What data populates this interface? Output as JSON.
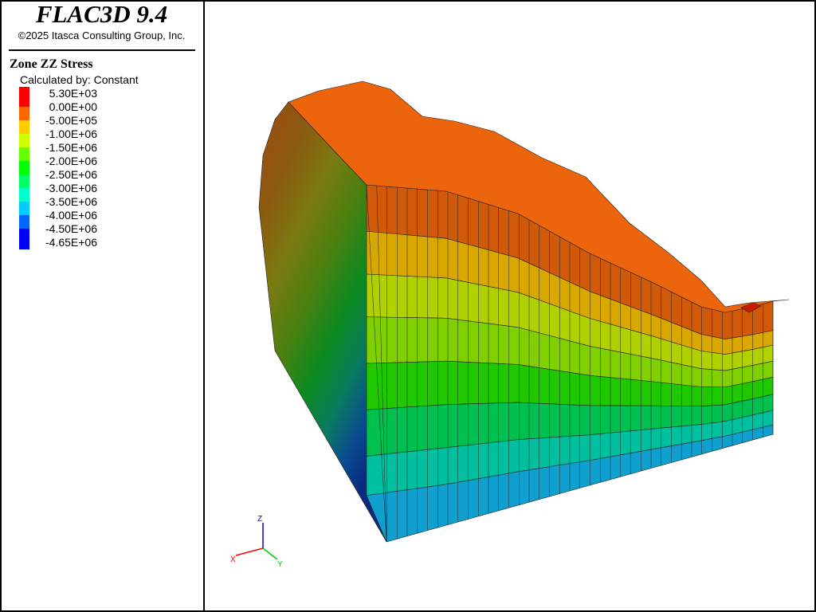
{
  "header": {
    "title": "FLAC3D 9.4",
    "copyright": "©2025 Itasca Consulting Group, Inc."
  },
  "legend": {
    "title": "Zone ZZ Stress",
    "subtitle": "Calculated by: Constant",
    "labels": [
      "5.30E+03",
      "0.00E+00",
      "-5.00E+05",
      "-1.00E+06",
      "-1.50E+06",
      "-2.00E+06",
      "-2.50E+06",
      "-3.00E+06",
      "-3.50E+06",
      "-4.00E+06",
      "-4.50E+06",
      "-4.65E+06"
    ],
    "colors": [
      "#ff0000",
      "#ff6600",
      "#ffcc00",
      "#ccff00",
      "#66ff00",
      "#00ff00",
      "#00ff66",
      "#00ffcc",
      "#00ccff",
      "#0066ff",
      "#0000ff"
    ]
  },
  "axes": {
    "x": "X",
    "y": "Y",
    "z": "Z",
    "x_color": "#ff0000",
    "y_color": "#00cc00",
    "z_color": "#0000ff"
  }
}
